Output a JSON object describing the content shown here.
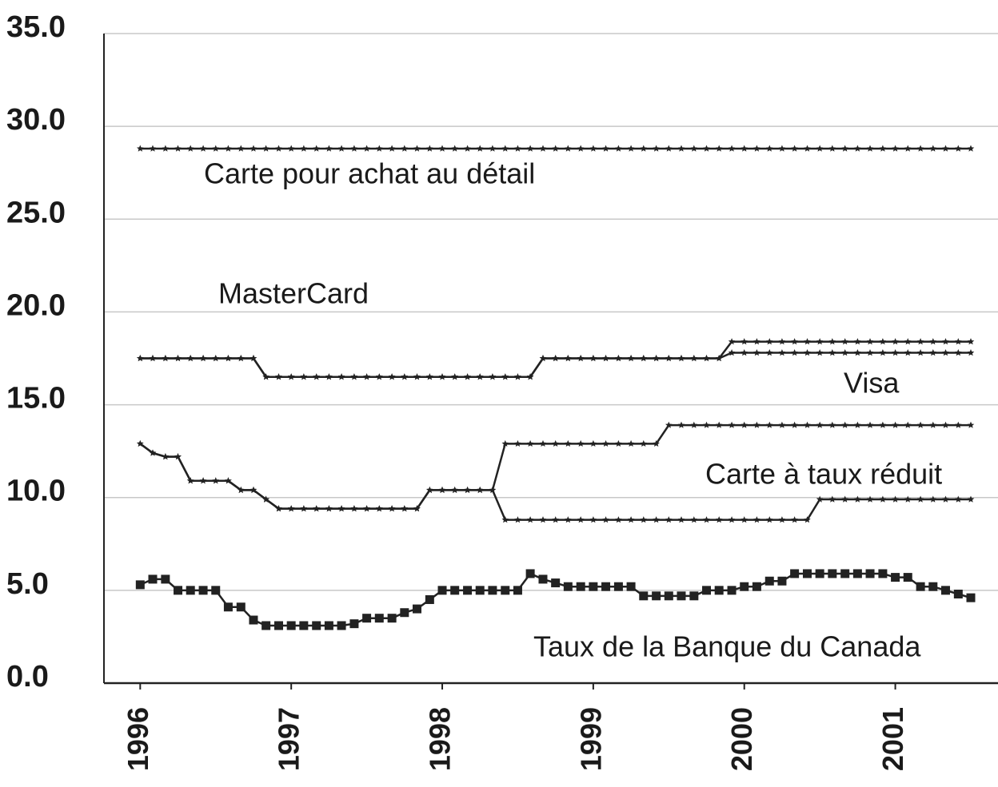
{
  "chart_data": {
    "type": "line",
    "x": [
      1996,
      1996.083,
      1996.167,
      1996.25,
      1996.333,
      1996.417,
      1996.5,
      1996.583,
      1996.667,
      1996.75,
      1996.833,
      1996.917,
      1997,
      1997.083,
      1997.167,
      1997.25,
      1997.333,
      1997.417,
      1997.5,
      1997.583,
      1997.667,
      1997.75,
      1997.833,
      1997.917,
      1998,
      1998.083,
      1998.167,
      1998.25,
      1998.333,
      1998.417,
      1998.5,
      1998.583,
      1998.667,
      1998.75,
      1998.833,
      1998.917,
      1999,
      1999.083,
      1999.167,
      1999.25,
      1999.333,
      1999.417,
      1999.5,
      1999.583,
      1999.667,
      1999.75,
      1999.833,
      1999.917,
      2000,
      2000.083,
      2000.167,
      2000.25,
      2000.333,
      2000.417,
      2000.5,
      2000.583,
      2000.667,
      2000.75,
      2000.833,
      2000.917,
      2001,
      2001.083,
      2001.167,
      2001.25,
      2001.333,
      2001.417,
      2001.5
    ],
    "series": [
      {
        "name": "Carte pour achat au détail",
        "color": "#222222",
        "marker": "star",
        "values": [
          28.8,
          28.8,
          28.8,
          28.8,
          28.8,
          28.8,
          28.8,
          28.8,
          28.8,
          28.8,
          28.8,
          28.8,
          28.8,
          28.8,
          28.8,
          28.8,
          28.8,
          28.8,
          28.8,
          28.8,
          28.8,
          28.8,
          28.8,
          28.8,
          28.8,
          28.8,
          28.8,
          28.8,
          28.8,
          28.8,
          28.8,
          28.8,
          28.8,
          28.8,
          28.8,
          28.8,
          28.8,
          28.8,
          28.8,
          28.8,
          28.8,
          28.8,
          28.8,
          28.8,
          28.8,
          28.8,
          28.8,
          28.8,
          28.8,
          28.8,
          28.8,
          28.8,
          28.8,
          28.8,
          28.8,
          28.8,
          28.8,
          28.8,
          28.8,
          28.8,
          28.8,
          28.8,
          28.8,
          28.8,
          28.8,
          28.8,
          28.8
        ]
      },
      {
        "name": "MasterCard",
        "color": "#222222",
        "marker": "star",
        "values": [
          17.5,
          17.5,
          17.5,
          17.5,
          17.5,
          17.5,
          17.5,
          17.5,
          17.5,
          17.5,
          16.5,
          16.5,
          16.5,
          16.5,
          16.5,
          16.5,
          16.5,
          16.5,
          16.5,
          16.5,
          16.5,
          16.5,
          16.5,
          16.5,
          16.5,
          16.5,
          16.5,
          16.5,
          16.5,
          16.5,
          16.5,
          16.5,
          17.5,
          17.5,
          17.5,
          17.5,
          17.5,
          17.5,
          17.5,
          17.5,
          17.5,
          17.5,
          17.5,
          17.5,
          17.5,
          17.5,
          17.5,
          18.4,
          18.4,
          18.4,
          18.4,
          18.4,
          18.4,
          18.4,
          18.4,
          18.4,
          18.4,
          18.4,
          18.4,
          18.4,
          18.4,
          18.4,
          18.4,
          18.4,
          18.4,
          18.4,
          18.4
        ]
      },
      {
        "name": "Visa",
        "color": "#222222",
        "marker": "star",
        "values": [
          17.5,
          17.5,
          17.5,
          17.5,
          17.5,
          17.5,
          17.5,
          17.5,
          17.5,
          17.5,
          16.5,
          16.5,
          16.5,
          16.5,
          16.5,
          16.5,
          16.5,
          16.5,
          16.5,
          16.5,
          16.5,
          16.5,
          16.5,
          16.5,
          16.5,
          16.5,
          16.5,
          16.5,
          16.5,
          16.5,
          16.5,
          16.5,
          17.5,
          17.5,
          17.5,
          17.5,
          17.5,
          17.5,
          17.5,
          17.5,
          17.5,
          17.5,
          17.5,
          17.5,
          17.5,
          17.5,
          17.5,
          17.8,
          17.8,
          17.8,
          17.8,
          17.8,
          17.8,
          17.8,
          17.8,
          17.8,
          17.8,
          17.8,
          17.8,
          17.8,
          17.8,
          17.8,
          17.8,
          17.8,
          17.8,
          17.8,
          17.8
        ]
      },
      {
        "name": "Carte à taux réduit",
        "color": "#222222",
        "marker": "star",
        "values": [
          12.9,
          12.4,
          12.2,
          12.2,
          10.9,
          10.9,
          10.9,
          10.9,
          10.4,
          10.4,
          9.9,
          9.4,
          9.4,
          9.4,
          9.4,
          9.4,
          9.4,
          9.4,
          9.4,
          9.4,
          9.4,
          9.4,
          9.4,
          10.4,
          10.4,
          10.4,
          10.4,
          10.4,
          10.4,
          12.9,
          12.9,
          12.9,
          12.9,
          12.9,
          12.9,
          12.9,
          12.9,
          12.9,
          12.9,
          12.9,
          12.9,
          12.9,
          13.9,
          13.9,
          13.9,
          13.9,
          13.9,
          13.9,
          13.9,
          13.9,
          13.9,
          13.9,
          13.9,
          13.9,
          13.9,
          13.9,
          13.9,
          13.9,
          13.9,
          13.9,
          13.9,
          13.9,
          13.9,
          13.9,
          13.9,
          13.9,
          13.9
        ]
      },
      {
        "color": "#222222",
        "marker": "star",
        "values": [
          12.9,
          12.4,
          12.2,
          12.2,
          10.9,
          10.9,
          10.9,
          10.9,
          10.4,
          10.4,
          9.9,
          9.4,
          9.4,
          9.4,
          9.4,
          9.4,
          9.4,
          9.4,
          9.4,
          9.4,
          9.4,
          9.4,
          9.4,
          10.4,
          10.4,
          10.4,
          10.4,
          10.4,
          10.4,
          8.8,
          8.8,
          8.8,
          8.8,
          8.8,
          8.8,
          8.8,
          8.8,
          8.8,
          8.8,
          8.8,
          8.8,
          8.8,
          8.8,
          8.8,
          8.8,
          8.8,
          8.8,
          8.8,
          8.8,
          8.8,
          8.8,
          8.8,
          8.8,
          8.8,
          9.9,
          9.9,
          9.9,
          9.9,
          9.9,
          9.9,
          9.9,
          9.9,
          9.9,
          9.9,
          9.9,
          9.9,
          9.9
        ]
      },
      {
        "name": "Taux de la Banque du Canada",
        "color": "#222222",
        "marker": "square",
        "values": [
          5.3,
          5.6,
          5.6,
          5.0,
          5.0,
          5.0,
          5.0,
          4.1,
          4.1,
          3.4,
          3.1,
          3.1,
          3.1,
          3.1,
          3.1,
          3.1,
          3.1,
          3.2,
          3.5,
          3.5,
          3.5,
          3.8,
          4.0,
          4.5,
          5.0,
          5.0,
          5.0,
          5.0,
          5.0,
          5.0,
          5.0,
          5.9,
          5.6,
          5.4,
          5.2,
          5.2,
          5.2,
          5.2,
          5.2,
          5.2,
          4.7,
          4.7,
          4.7,
          4.7,
          4.7,
          5.0,
          5.0,
          5.0,
          5.2,
          5.2,
          5.5,
          5.5,
          5.9,
          5.9,
          5.9,
          5.9,
          5.9,
          5.9,
          5.9,
          5.9,
          5.7,
          5.7,
          5.2,
          5.2,
          5.0,
          4.8,
          4.6
        ]
      }
    ],
    "xlim": [
      1995.76,
      2001.68
    ],
    "ylim": [
      0,
      35
    ],
    "xticks": [
      1996,
      1997,
      1998,
      1999,
      2000,
      2001
    ],
    "yticks": [
      {
        "value": 0,
        "label": "0.0"
      },
      {
        "value": 5,
        "label": "5.0"
      },
      {
        "value": 10,
        "label": "10.0"
      },
      {
        "value": 15,
        "label": "15.0"
      },
      {
        "value": 20,
        "label": "20.0"
      },
      {
        "value": 25,
        "label": "25.0"
      },
      {
        "value": 30,
        "label": "30.0"
      },
      {
        "value": 35,
        "label": "35.0"
      }
    ],
    "grid": true
  }
}
